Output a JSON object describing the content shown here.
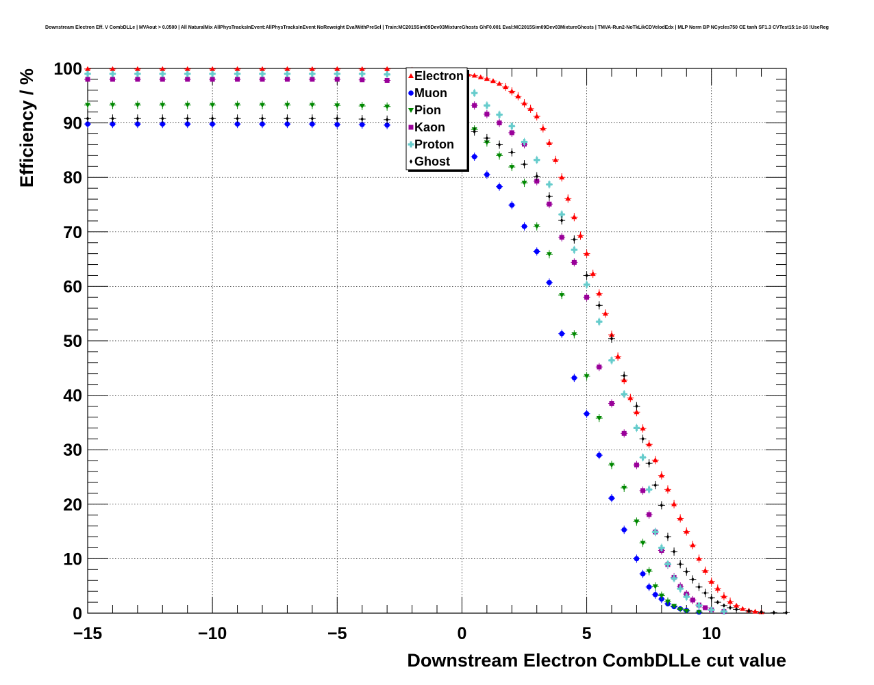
{
  "chart_data": {
    "type": "scatter",
    "title": "Downstream Electron Eff. V CombDLLe | MVAout > 0.0500 | All NaturalMix AllPhysTracksInEvent:AllPhysTracksInEvent NoReweight EvalWithPreSel | Train:MC2015Sim09Dev03MixtureGhosts GhF0.001 Eval:MC2015Sim09Dev03MixtureGhosts | TMVA-Run2-NoTkLikCDVelodEdx | MLP Norm BP NCycles750 CE tanh SF1.3 CVTest15:1e-16 !UseReg",
    "xlabel": "Downstream Electron CombDLLe cut value",
    "ylabel": "Efficiency / %",
    "xlim": [
      -15,
      13
    ],
    "ylim": [
      0,
      100
    ],
    "x_tick_labels": [
      "−15",
      "−10",
      "−5",
      "0",
      "5",
      "10"
    ],
    "x_tick_values": [
      -15,
      -10,
      -5,
      0,
      5,
      10
    ],
    "y_tick_labels": [
      "0",
      "10",
      "20",
      "30",
      "40",
      "50",
      "60",
      "70",
      "80",
      "90",
      "100"
    ],
    "y_tick_values": [
      0,
      10,
      20,
      30,
      40,
      50,
      60,
      70,
      80,
      90,
      100
    ],
    "grid": true,
    "legend_position": "top-center",
    "series": [
      {
        "name": "Electron",
        "color": "#ff0000",
        "marker": "triangle-up",
        "points": [
          [
            -15,
            99.9
          ],
          [
            -14,
            99.9
          ],
          [
            -13,
            99.9
          ],
          [
            -12,
            99.9
          ],
          [
            -11,
            99.9
          ],
          [
            -10,
            99.9
          ],
          [
            -9,
            99.9
          ],
          [
            -8,
            99.9
          ],
          [
            -7,
            99.9
          ],
          [
            -6,
            99.9
          ],
          [
            -5,
            99.9
          ],
          [
            -4,
            99.9
          ],
          [
            -3,
            99.9
          ],
          [
            -2,
            99.8
          ],
          [
            -1,
            99.6
          ],
          [
            0,
            99.2
          ],
          [
            0.25,
            98.9
          ],
          [
            0.5,
            98.7
          ],
          [
            0.75,
            98.4
          ],
          [
            1.0,
            98.1
          ],
          [
            1.25,
            97.7
          ],
          [
            1.5,
            97.2
          ],
          [
            1.75,
            96.6
          ],
          [
            2.0,
            95.8
          ],
          [
            2.25,
            94.9
          ],
          [
            2.5,
            93.6
          ],
          [
            2.75,
            92.6
          ],
          [
            3.0,
            91.2
          ],
          [
            3.25,
            89.0
          ],
          [
            3.5,
            86.3
          ],
          [
            3.75,
            83.2
          ],
          [
            4.0,
            80.0
          ],
          [
            4.25,
            76.1
          ],
          [
            4.5,
            72.7
          ],
          [
            4.75,
            69.3
          ],
          [
            5.0,
            66.0
          ],
          [
            5.25,
            62.3
          ],
          [
            5.5,
            58.7
          ],
          [
            5.75,
            55.0
          ],
          [
            6.0,
            51.1
          ],
          [
            6.25,
            47.1
          ],
          [
            6.5,
            42.8
          ],
          [
            6.75,
            39.5
          ],
          [
            7.0,
            36.9
          ],
          [
            7.25,
            33.9
          ],
          [
            7.5,
            31.0
          ],
          [
            7.75,
            28.1
          ],
          [
            8.0,
            25.3
          ],
          [
            8.25,
            22.7
          ],
          [
            8.5,
            20.0
          ],
          [
            8.75,
            17.4
          ],
          [
            9.0,
            15.0
          ],
          [
            9.25,
            12.5
          ],
          [
            9.5,
            10.0
          ],
          [
            9.75,
            7.8
          ],
          [
            10.0,
            5.8
          ],
          [
            10.25,
            4.5
          ],
          [
            10.5,
            3.1
          ],
          [
            10.75,
            2.1
          ],
          [
            11.0,
            1.4
          ],
          [
            11.25,
            0.8
          ],
          [
            11.5,
            0.5
          ],
          [
            11.75,
            0.3
          ],
          [
            12.0,
            0.2
          ]
        ]
      },
      {
        "name": "Muon",
        "color": "#0000ff",
        "marker": "circle",
        "points": [
          [
            -15,
            89.8
          ],
          [
            -14,
            89.8
          ],
          [
            -13,
            89.8
          ],
          [
            -12,
            89.8
          ],
          [
            -11,
            89.8
          ],
          [
            -10,
            89.8
          ],
          [
            -9,
            89.8
          ],
          [
            -8,
            89.8
          ],
          [
            -7,
            89.8
          ],
          [
            -6,
            89.8
          ],
          [
            -5,
            89.7
          ],
          [
            -4,
            89.7
          ],
          [
            -3,
            89.6
          ],
          [
            -2,
            89.4
          ],
          [
            -1,
            88.5
          ],
          [
            0,
            86.0
          ],
          [
            0.5,
            83.8
          ],
          [
            1.0,
            80.5
          ],
          [
            1.5,
            78.3
          ],
          [
            2.0,
            74.9
          ],
          [
            2.5,
            71.0
          ],
          [
            3.0,
            66.4
          ],
          [
            3.5,
            60.7
          ],
          [
            4.0,
            51.3
          ],
          [
            4.5,
            43.2
          ],
          [
            5.0,
            36.6
          ],
          [
            5.5,
            29.0
          ],
          [
            6.0,
            21.1
          ],
          [
            6.5,
            15.3
          ],
          [
            7.0,
            10.0
          ],
          [
            7.25,
            7.2
          ],
          [
            7.5,
            4.8
          ],
          [
            7.75,
            3.4
          ],
          [
            8.0,
            2.6
          ],
          [
            8.25,
            1.7
          ],
          [
            8.5,
            1.2
          ],
          [
            8.75,
            0.8
          ],
          [
            9.0,
            0.5
          ],
          [
            9.5,
            0.2
          ]
        ]
      },
      {
        "name": "Pion",
        "color": "#008800",
        "marker": "triangle-down",
        "points": [
          [
            -15,
            93.3
          ],
          [
            -14,
            93.3
          ],
          [
            -13,
            93.3
          ],
          [
            -12,
            93.3
          ],
          [
            -11,
            93.3
          ],
          [
            -10,
            93.3
          ],
          [
            -9,
            93.3
          ],
          [
            -8,
            93.3
          ],
          [
            -7,
            93.3
          ],
          [
            -6,
            93.3
          ],
          [
            -5,
            93.2
          ],
          [
            -4,
            93.1
          ],
          [
            -3,
            93.0
          ],
          [
            -2,
            92.6
          ],
          [
            -1,
            91.6
          ],
          [
            0,
            90.0
          ],
          [
            0.5,
            88.8
          ],
          [
            1.0,
            86.4
          ],
          [
            1.5,
            84.0
          ],
          [
            2.0,
            81.9
          ],
          [
            2.5,
            79.0
          ],
          [
            3.0,
            71.0
          ],
          [
            3.5,
            65.9
          ],
          [
            4.0,
            58.4
          ],
          [
            4.5,
            51.2
          ],
          [
            5.0,
            43.5
          ],
          [
            5.5,
            35.8
          ],
          [
            6.0,
            27.2
          ],
          [
            6.5,
            23.0
          ],
          [
            7.0,
            16.8
          ],
          [
            7.25,
            12.9
          ],
          [
            7.5,
            7.7
          ],
          [
            7.75,
            4.9
          ],
          [
            8.0,
            3.2
          ],
          [
            8.25,
            2.1
          ],
          [
            8.5,
            1.3
          ],
          [
            8.75,
            0.7
          ],
          [
            9.0,
            0.4
          ],
          [
            9.5,
            0.2
          ]
        ]
      },
      {
        "name": "Kaon",
        "color": "#990099",
        "marker": "square",
        "points": [
          [
            -15,
            98.0
          ],
          [
            -14,
            98.0
          ],
          [
            -13,
            98.0
          ],
          [
            -12,
            98.0
          ],
          [
            -11,
            98.0
          ],
          [
            -10,
            98.0
          ],
          [
            -9,
            98.0
          ],
          [
            -8,
            98.0
          ],
          [
            -7,
            98.0
          ],
          [
            -6,
            98.0
          ],
          [
            -5,
            98.0
          ],
          [
            -4,
            97.9
          ],
          [
            -3,
            97.8
          ],
          [
            -2,
            97.6
          ],
          [
            -1,
            96.6
          ],
          [
            0,
            95.3
          ],
          [
            0.5,
            93.2
          ],
          [
            1.0,
            91.6
          ],
          [
            1.5,
            90.0
          ],
          [
            2.0,
            88.2
          ],
          [
            2.5,
            86.1
          ],
          [
            3.0,
            79.3
          ],
          [
            3.5,
            75.1
          ],
          [
            4.0,
            69.0
          ],
          [
            4.5,
            64.4
          ],
          [
            5.0,
            58.0
          ],
          [
            5.5,
            45.2
          ],
          [
            6.0,
            38.5
          ],
          [
            6.5,
            33.0
          ],
          [
            7.0,
            27.2
          ],
          [
            7.25,
            22.5
          ],
          [
            7.5,
            18.1
          ],
          [
            7.75,
            14.9
          ],
          [
            8.0,
            11.5
          ],
          [
            8.25,
            8.9
          ],
          [
            8.5,
            6.6
          ],
          [
            8.75,
            4.9
          ],
          [
            9.0,
            3.5
          ],
          [
            9.25,
            2.4
          ],
          [
            9.5,
            1.5
          ],
          [
            9.75,
            1.0
          ],
          [
            10.0,
            0.6
          ],
          [
            10.5,
            0.3
          ]
        ]
      },
      {
        "name": "Proton",
        "color": "#66cccc",
        "marker": "cross",
        "points": [
          [
            -15,
            99.0
          ],
          [
            -14,
            99.0
          ],
          [
            -13,
            99.0
          ],
          [
            -12,
            99.0
          ],
          [
            -11,
            99.0
          ],
          [
            -10,
            99.0
          ],
          [
            -9,
            99.0
          ],
          [
            -8,
            99.0
          ],
          [
            -7,
            99.0
          ],
          [
            -6,
            99.0
          ],
          [
            -5,
            99.0
          ],
          [
            -4,
            99.0
          ],
          [
            -3,
            98.9
          ],
          [
            -2,
            98.7
          ],
          [
            -1,
            98.0
          ],
          [
            0,
            96.8
          ],
          [
            0.5,
            95.5
          ],
          [
            1.0,
            93.2
          ],
          [
            1.5,
            91.5
          ],
          [
            2.0,
            89.4
          ],
          [
            2.5,
            86.5
          ],
          [
            3.0,
            83.2
          ],
          [
            3.5,
            78.7
          ],
          [
            4.0,
            73.2
          ],
          [
            4.5,
            66.7
          ],
          [
            5.0,
            60.3
          ],
          [
            5.5,
            53.5
          ],
          [
            6.0,
            46.4
          ],
          [
            6.5,
            40.2
          ],
          [
            7.0,
            34.0
          ],
          [
            7.25,
            28.6
          ],
          [
            7.5,
            22.7
          ],
          [
            7.75,
            14.9
          ],
          [
            8.0,
            12.0
          ],
          [
            8.25,
            9.0
          ],
          [
            8.5,
            6.4
          ],
          [
            8.75,
            4.5
          ],
          [
            9.0,
            3.0
          ],
          [
            9.5,
            1.4
          ],
          [
            10.0,
            0.6
          ],
          [
            10.5,
            0.3
          ]
        ]
      },
      {
        "name": "Ghost",
        "color": "#000000",
        "marker": "diamond",
        "points": [
          [
            -15,
            90.8
          ],
          [
            -14,
            90.8
          ],
          [
            -13,
            90.8
          ],
          [
            -12,
            90.8
          ],
          [
            -11,
            90.8
          ],
          [
            -10,
            90.8
          ],
          [
            -9,
            90.8
          ],
          [
            -8,
            90.8
          ],
          [
            -7,
            90.8
          ],
          [
            -6,
            90.8
          ],
          [
            -5,
            90.8
          ],
          [
            -4,
            90.7
          ],
          [
            -3,
            90.6
          ],
          [
            -2,
            90.3
          ],
          [
            -1,
            89.7
          ],
          [
            0,
            89.2
          ],
          [
            0.5,
            88.4
          ],
          [
            1.0,
            87.2
          ],
          [
            1.5,
            86.0
          ],
          [
            2.0,
            84.6
          ],
          [
            2.5,
            82.4
          ],
          [
            3.0,
            80.2
          ],
          [
            3.5,
            76.5
          ],
          [
            4.0,
            72.1
          ],
          [
            4.5,
            68.6
          ],
          [
            5.0,
            62.0
          ],
          [
            5.5,
            56.5
          ],
          [
            6.0,
            50.4
          ],
          [
            6.5,
            43.6
          ],
          [
            7.0,
            38.0
          ],
          [
            7.25,
            32.0
          ],
          [
            7.5,
            27.5
          ],
          [
            7.75,
            23.5
          ],
          [
            8.0,
            19.8
          ],
          [
            8.25,
            14.0
          ],
          [
            8.5,
            11.3
          ],
          [
            8.75,
            9.0
          ],
          [
            9.0,
            7.6
          ],
          [
            9.25,
            6.2
          ],
          [
            9.5,
            4.8
          ],
          [
            9.75,
            3.7
          ],
          [
            10.0,
            2.8
          ],
          [
            10.25,
            2.0
          ],
          [
            10.5,
            1.4
          ],
          [
            10.75,
            1.0
          ],
          [
            11.0,
            0.7
          ],
          [
            11.5,
            0.4
          ],
          [
            12.0,
            0.2
          ],
          [
            12.5,
            0.1
          ],
          [
            13.0,
            0.1
          ]
        ]
      }
    ]
  }
}
